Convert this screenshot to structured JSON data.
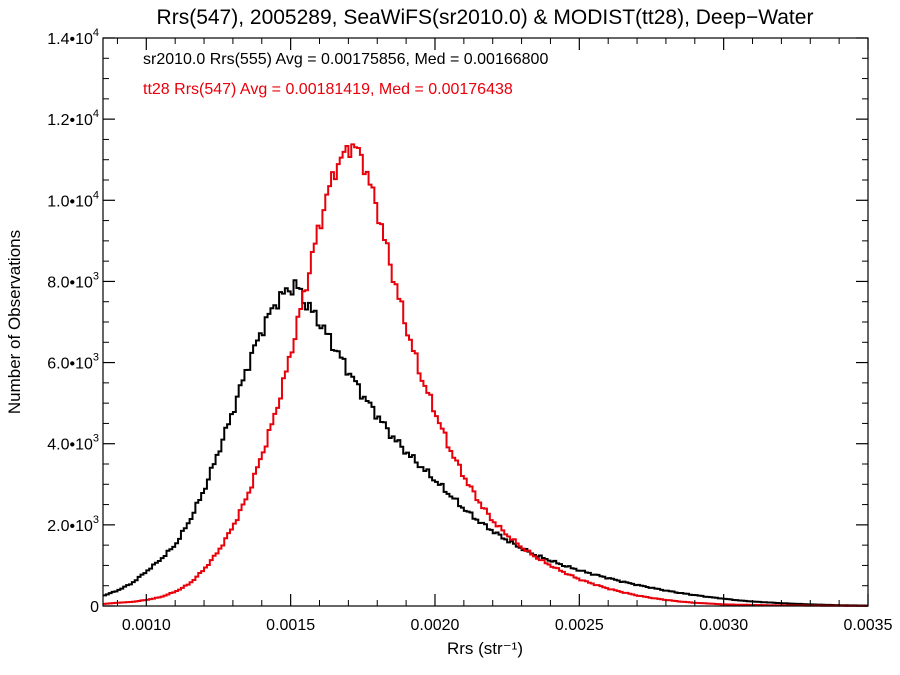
{
  "chart_data": {
    "type": "line",
    "title": "Rrs(547), 2005289, SeaWiFS(sr2010.0) & MODIST(tt28), Deep−Water",
    "xlabel": "Rrs (str⁻¹)",
    "ylabel": "Number of Observations",
    "xlim": [
      0.00085,
      0.0035
    ],
    "ylim": [
      0,
      14000
    ],
    "grid": false,
    "x_ticks": [
      {
        "value": 0.001,
        "label": "0.0010"
      },
      {
        "value": 0.0015,
        "label": "0.0015"
      },
      {
        "value": 0.002,
        "label": "0.0020"
      },
      {
        "value": 0.0025,
        "label": "0.0025"
      },
      {
        "value": 0.003,
        "label": "0.0030"
      },
      {
        "value": 0.0035,
        "label": "0.0035"
      }
    ],
    "y_ticks": [
      {
        "value": 0,
        "mantissa": "0",
        "exp": ""
      },
      {
        "value": 2000,
        "mantissa": "2.0•10",
        "exp": "3"
      },
      {
        "value": 4000,
        "mantissa": "4.0•10",
        "exp": "3"
      },
      {
        "value": 6000,
        "mantissa": "6.0•10",
        "exp": "3"
      },
      {
        "value": 8000,
        "mantissa": "8.0•10",
        "exp": "3"
      },
      {
        "value": 10000,
        "mantissa": "1.0•10",
        "exp": "4"
      },
      {
        "value": 12000,
        "mantissa": "1.2•10",
        "exp": "4"
      },
      {
        "value": 14000,
        "mantissa": "1.4•10",
        "exp": "4"
      }
    ],
    "annotations": [
      {
        "text": "sr2010.0 Rrs(555) Avg = 0.00175856, Med = 0.00166800",
        "color": "#000000"
      },
      {
        "text": "tt28 Rrs(547) Avg = 0.00181419, Med = 0.00176438",
        "color": "#e8000b"
      }
    ],
    "series": [
      {
        "color": "#000000",
        "x": [
          0.00085,
          0.0009,
          0.00095,
          0.001,
          0.00105,
          0.0011,
          0.00115,
          0.0012,
          0.00125,
          0.0013,
          0.00135,
          0.0014,
          0.00145,
          0.0015,
          0.00152,
          0.00155,
          0.0016,
          0.00165,
          0.0017,
          0.00175,
          0.0018,
          0.00185,
          0.0019,
          0.00195,
          0.002,
          0.00205,
          0.0021,
          0.00215,
          0.0022,
          0.00225,
          0.0023,
          0.00235,
          0.0024,
          0.00245,
          0.0025,
          0.00255,
          0.0026,
          0.00265,
          0.0027,
          0.00275,
          0.0028,
          0.00285,
          0.0029,
          0.00295,
          0.003,
          0.00305,
          0.0031,
          0.0032,
          0.0033,
          0.0034,
          0.0035
        ],
        "y": [
          250,
          380,
          560,
          850,
          1150,
          1500,
          2100,
          2850,
          3800,
          4800,
          5900,
          6800,
          7500,
          7850,
          7900,
          7500,
          7000,
          6400,
          5800,
          5200,
          4700,
          4200,
          3800,
          3450,
          3100,
          2750,
          2400,
          2100,
          1850,
          1620,
          1420,
          1250,
          1120,
          990,
          880,
          780,
          690,
          600,
          520,
          450,
          380,
          320,
          270,
          220,
          180,
          140,
          110,
          70,
          40,
          20,
          10
        ]
      },
      {
        "color": "#e8000b",
        "x": [
          0.00085,
          0.0009,
          0.00095,
          0.001,
          0.00105,
          0.0011,
          0.00115,
          0.0012,
          0.00125,
          0.0013,
          0.00135,
          0.0014,
          0.00145,
          0.0015,
          0.00155,
          0.0016,
          0.00165,
          0.0017,
          0.00172,
          0.00175,
          0.0018,
          0.00185,
          0.0019,
          0.00195,
          0.002,
          0.00205,
          0.0021,
          0.00215,
          0.0022,
          0.00225,
          0.0023,
          0.00235,
          0.0024,
          0.00245,
          0.0025,
          0.00255,
          0.0026,
          0.00265,
          0.0027,
          0.00275,
          0.0028,
          0.00285,
          0.0029,
          0.00295,
          0.003,
          0.0031,
          0.0032,
          0.0033,
          0.0034,
          0.0035
        ],
        "y": [
          50,
          80,
          100,
          150,
          220,
          350,
          550,
          900,
          1350,
          1950,
          2700,
          3700,
          4800,
          6200,
          7800,
          9400,
          10700,
          11300,
          11350,
          11000,
          9800,
          8300,
          6900,
          5700,
          4800,
          3900,
          3200,
          2600,
          2100,
          1750,
          1450,
          1200,
          1000,
          820,
          660,
          540,
          430,
          340,
          260,
          200,
          150,
          110,
          80,
          60,
          40,
          25,
          15,
          10,
          5,
          3
        ]
      }
    ]
  }
}
